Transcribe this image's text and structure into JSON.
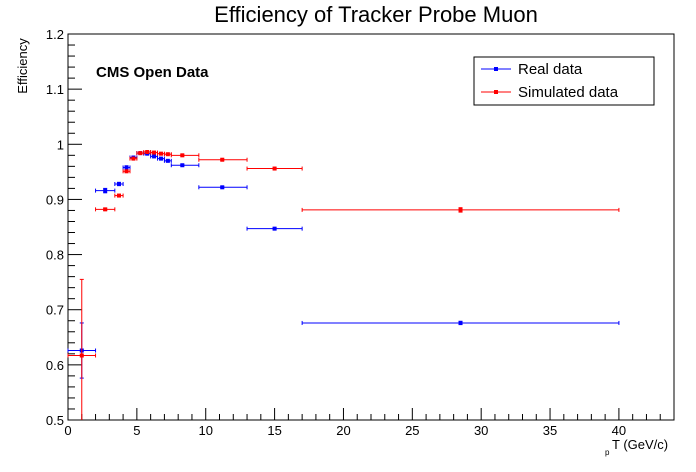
{
  "chart_data": {
    "type": "scatter",
    "title": "Efficiency of Tracker Probe Muon",
    "xlabel_main": "T (GeV/c)",
    "xlabel_sub": "p",
    "ylabel": "Efficiency",
    "annotation": "CMS Open Data",
    "xlim": [
      0,
      44
    ],
    "ylim": [
      0.5,
      1.2
    ],
    "xticks": [
      0,
      5,
      10,
      15,
      20,
      25,
      30,
      35,
      40
    ],
    "yticks": [
      0.5,
      0.6,
      0.7,
      0.8,
      0.9,
      1,
      1.1,
      1.2
    ],
    "ytick_labels": [
      "0.5",
      "0.6",
      "0.7",
      "0.8",
      "0.9",
      "1",
      "1.1",
      "1.2"
    ],
    "grid": false,
    "legend_position": "top-right",
    "series": [
      {
        "name": "Real data",
        "color": "#0000ff",
        "points": [
          {
            "x": 1.0,
            "xlo": 0.0,
            "xhi": 2.0,
            "y": 0.626,
            "ylo": 0.576,
            "yhi": 0.676
          },
          {
            "x": 2.7,
            "xlo": 2.0,
            "xhi": 3.4,
            "y": 0.916,
            "ylo": 0.912,
            "yhi": 0.92
          },
          {
            "x": 3.7,
            "xlo": 3.4,
            "xhi": 4.0,
            "y": 0.928,
            "ylo": 0.925,
            "yhi": 0.931
          },
          {
            "x": 4.25,
            "xlo": 4.0,
            "xhi": 4.5,
            "y": 0.958,
            "ylo": 0.955,
            "yhi": 0.961
          },
          {
            "x": 4.75,
            "xlo": 4.5,
            "xhi": 5.0,
            "y": 0.976,
            "ylo": 0.974,
            "yhi": 0.978
          },
          {
            "x": 5.25,
            "xlo": 5.0,
            "xhi": 5.5,
            "y": 0.984,
            "ylo": 0.983,
            "yhi": 0.985
          },
          {
            "x": 5.75,
            "xlo": 5.5,
            "xhi": 6.0,
            "y": 0.983,
            "ylo": 0.982,
            "yhi": 0.984
          },
          {
            "x": 6.25,
            "xlo": 6.0,
            "xhi": 6.5,
            "y": 0.978,
            "ylo": 0.977,
            "yhi": 0.979
          },
          {
            "x": 6.75,
            "xlo": 6.5,
            "xhi": 7.0,
            "y": 0.974,
            "ylo": 0.973,
            "yhi": 0.975
          },
          {
            "x": 7.25,
            "xlo": 7.0,
            "xhi": 7.5,
            "y": 0.97,
            "ylo": 0.969,
            "yhi": 0.971
          },
          {
            "x": 8.3,
            "xlo": 7.5,
            "xhi": 9.5,
            "y": 0.962,
            "ylo": 0.961,
            "yhi": 0.963
          },
          {
            "x": 11.2,
            "xlo": 9.5,
            "xhi": 13.0,
            "y": 0.922,
            "ylo": 0.921,
            "yhi": 0.923
          },
          {
            "x": 15.0,
            "xlo": 13.0,
            "xhi": 17.0,
            "y": 0.847,
            "ylo": 0.846,
            "yhi": 0.848
          },
          {
            "x": 28.5,
            "xlo": 17.0,
            "xhi": 40.0,
            "y": 0.676,
            "ylo": 0.673,
            "yhi": 0.679
          }
        ]
      },
      {
        "name": "Simulated data",
        "color": "#ff0000",
        "points": [
          {
            "x": 1.0,
            "xlo": 0.0,
            "xhi": 2.0,
            "y": 0.617,
            "ylo": 0.48,
            "yhi": 0.755
          },
          {
            "x": 2.7,
            "xlo": 2.0,
            "xhi": 3.4,
            "y": 0.882,
            "ylo": 0.88,
            "yhi": 0.884
          },
          {
            "x": 3.7,
            "xlo": 3.4,
            "xhi": 4.0,
            "y": 0.907,
            "ylo": 0.905,
            "yhi": 0.909
          },
          {
            "x": 4.25,
            "xlo": 4.0,
            "xhi": 4.5,
            "y": 0.951,
            "ylo": 0.949,
            "yhi": 0.953
          },
          {
            "x": 4.75,
            "xlo": 4.5,
            "xhi": 5.0,
            "y": 0.974,
            "ylo": 0.973,
            "yhi": 0.975
          },
          {
            "x": 5.25,
            "xlo": 5.0,
            "xhi": 5.5,
            "y": 0.984,
            "ylo": 0.983,
            "yhi": 0.985
          },
          {
            "x": 5.75,
            "xlo": 5.5,
            "xhi": 6.0,
            "y": 0.986,
            "ylo": 0.985,
            "yhi": 0.987
          },
          {
            "x": 6.25,
            "xlo": 6.0,
            "xhi": 6.5,
            "y": 0.985,
            "ylo": 0.984,
            "yhi": 0.986
          },
          {
            "x": 6.75,
            "xlo": 6.5,
            "xhi": 7.0,
            "y": 0.983,
            "ylo": 0.982,
            "yhi": 0.984
          },
          {
            "x": 7.25,
            "xlo": 7.0,
            "xhi": 7.5,
            "y": 0.982,
            "ylo": 0.981,
            "yhi": 0.983
          },
          {
            "x": 8.3,
            "xlo": 7.5,
            "xhi": 9.5,
            "y": 0.98,
            "ylo": 0.979,
            "yhi": 0.981
          },
          {
            "x": 11.2,
            "xlo": 9.5,
            "xhi": 13.0,
            "y": 0.972,
            "ylo": 0.971,
            "yhi": 0.973
          },
          {
            "x": 15.0,
            "xlo": 13.0,
            "xhi": 17.0,
            "y": 0.956,
            "ylo": 0.955,
            "yhi": 0.957
          },
          {
            "x": 28.5,
            "xlo": 17.0,
            "xhi": 40.0,
            "y": 0.881,
            "ylo": 0.877,
            "yhi": 0.885
          }
        ]
      }
    ]
  }
}
